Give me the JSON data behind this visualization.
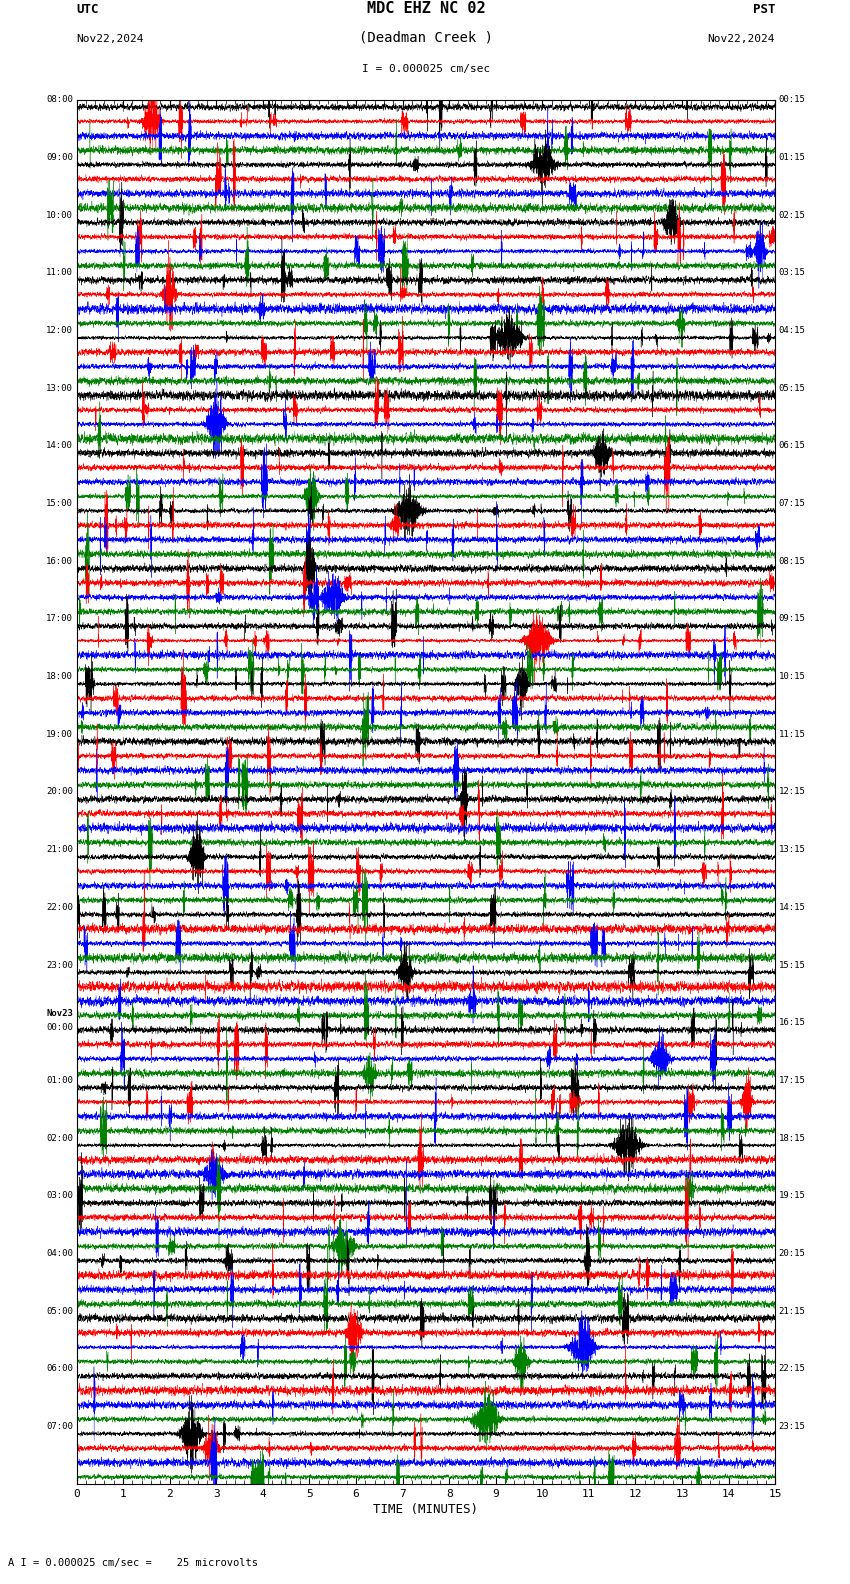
{
  "title_line1": "MDC EHZ NC 02",
  "title_line2": "(Deadman Creek )",
  "scale_label": "I = 0.000025 cm/sec",
  "utc_label": "UTC",
  "utc_date": "Nov22,2024",
  "pst_label": "PST",
  "pst_date": "Nov22,2024",
  "xlabel": "TIME (MINUTES)",
  "bottom_label": "A I = 0.000025 cm/sec =    25 microvolts",
  "left_times_utc": [
    "08:00",
    "09:00",
    "10:00",
    "11:00",
    "12:00",
    "13:00",
    "14:00",
    "15:00",
    "16:00",
    "17:00",
    "18:00",
    "19:00",
    "20:00",
    "21:00",
    "22:00",
    "23:00",
    "Nov23\n00:00",
    "01:00",
    "02:00",
    "03:00",
    "04:00",
    "05:00",
    "06:00",
    "07:00"
  ],
  "right_times_pst": [
    "00:15",
    "01:15",
    "02:15",
    "03:15",
    "04:15",
    "05:15",
    "06:15",
    "07:15",
    "08:15",
    "09:15",
    "10:15",
    "11:15",
    "12:15",
    "13:15",
    "14:15",
    "15:15",
    "16:15",
    "17:15",
    "18:15",
    "19:15",
    "20:15",
    "21:15",
    "22:15",
    "23:15"
  ],
  "n_rows": 24,
  "traces_per_row": 4,
  "trace_colors": [
    "black",
    "red",
    "blue",
    "green"
  ],
  "bg_color": "white",
  "fig_width": 8.5,
  "fig_height": 15.84,
  "dpi": 100,
  "time_min": 0,
  "time_max": 15,
  "xticks": [
    0,
    1,
    2,
    3,
    4,
    5,
    6,
    7,
    8,
    9,
    10,
    11,
    12,
    13,
    14,
    15
  ]
}
